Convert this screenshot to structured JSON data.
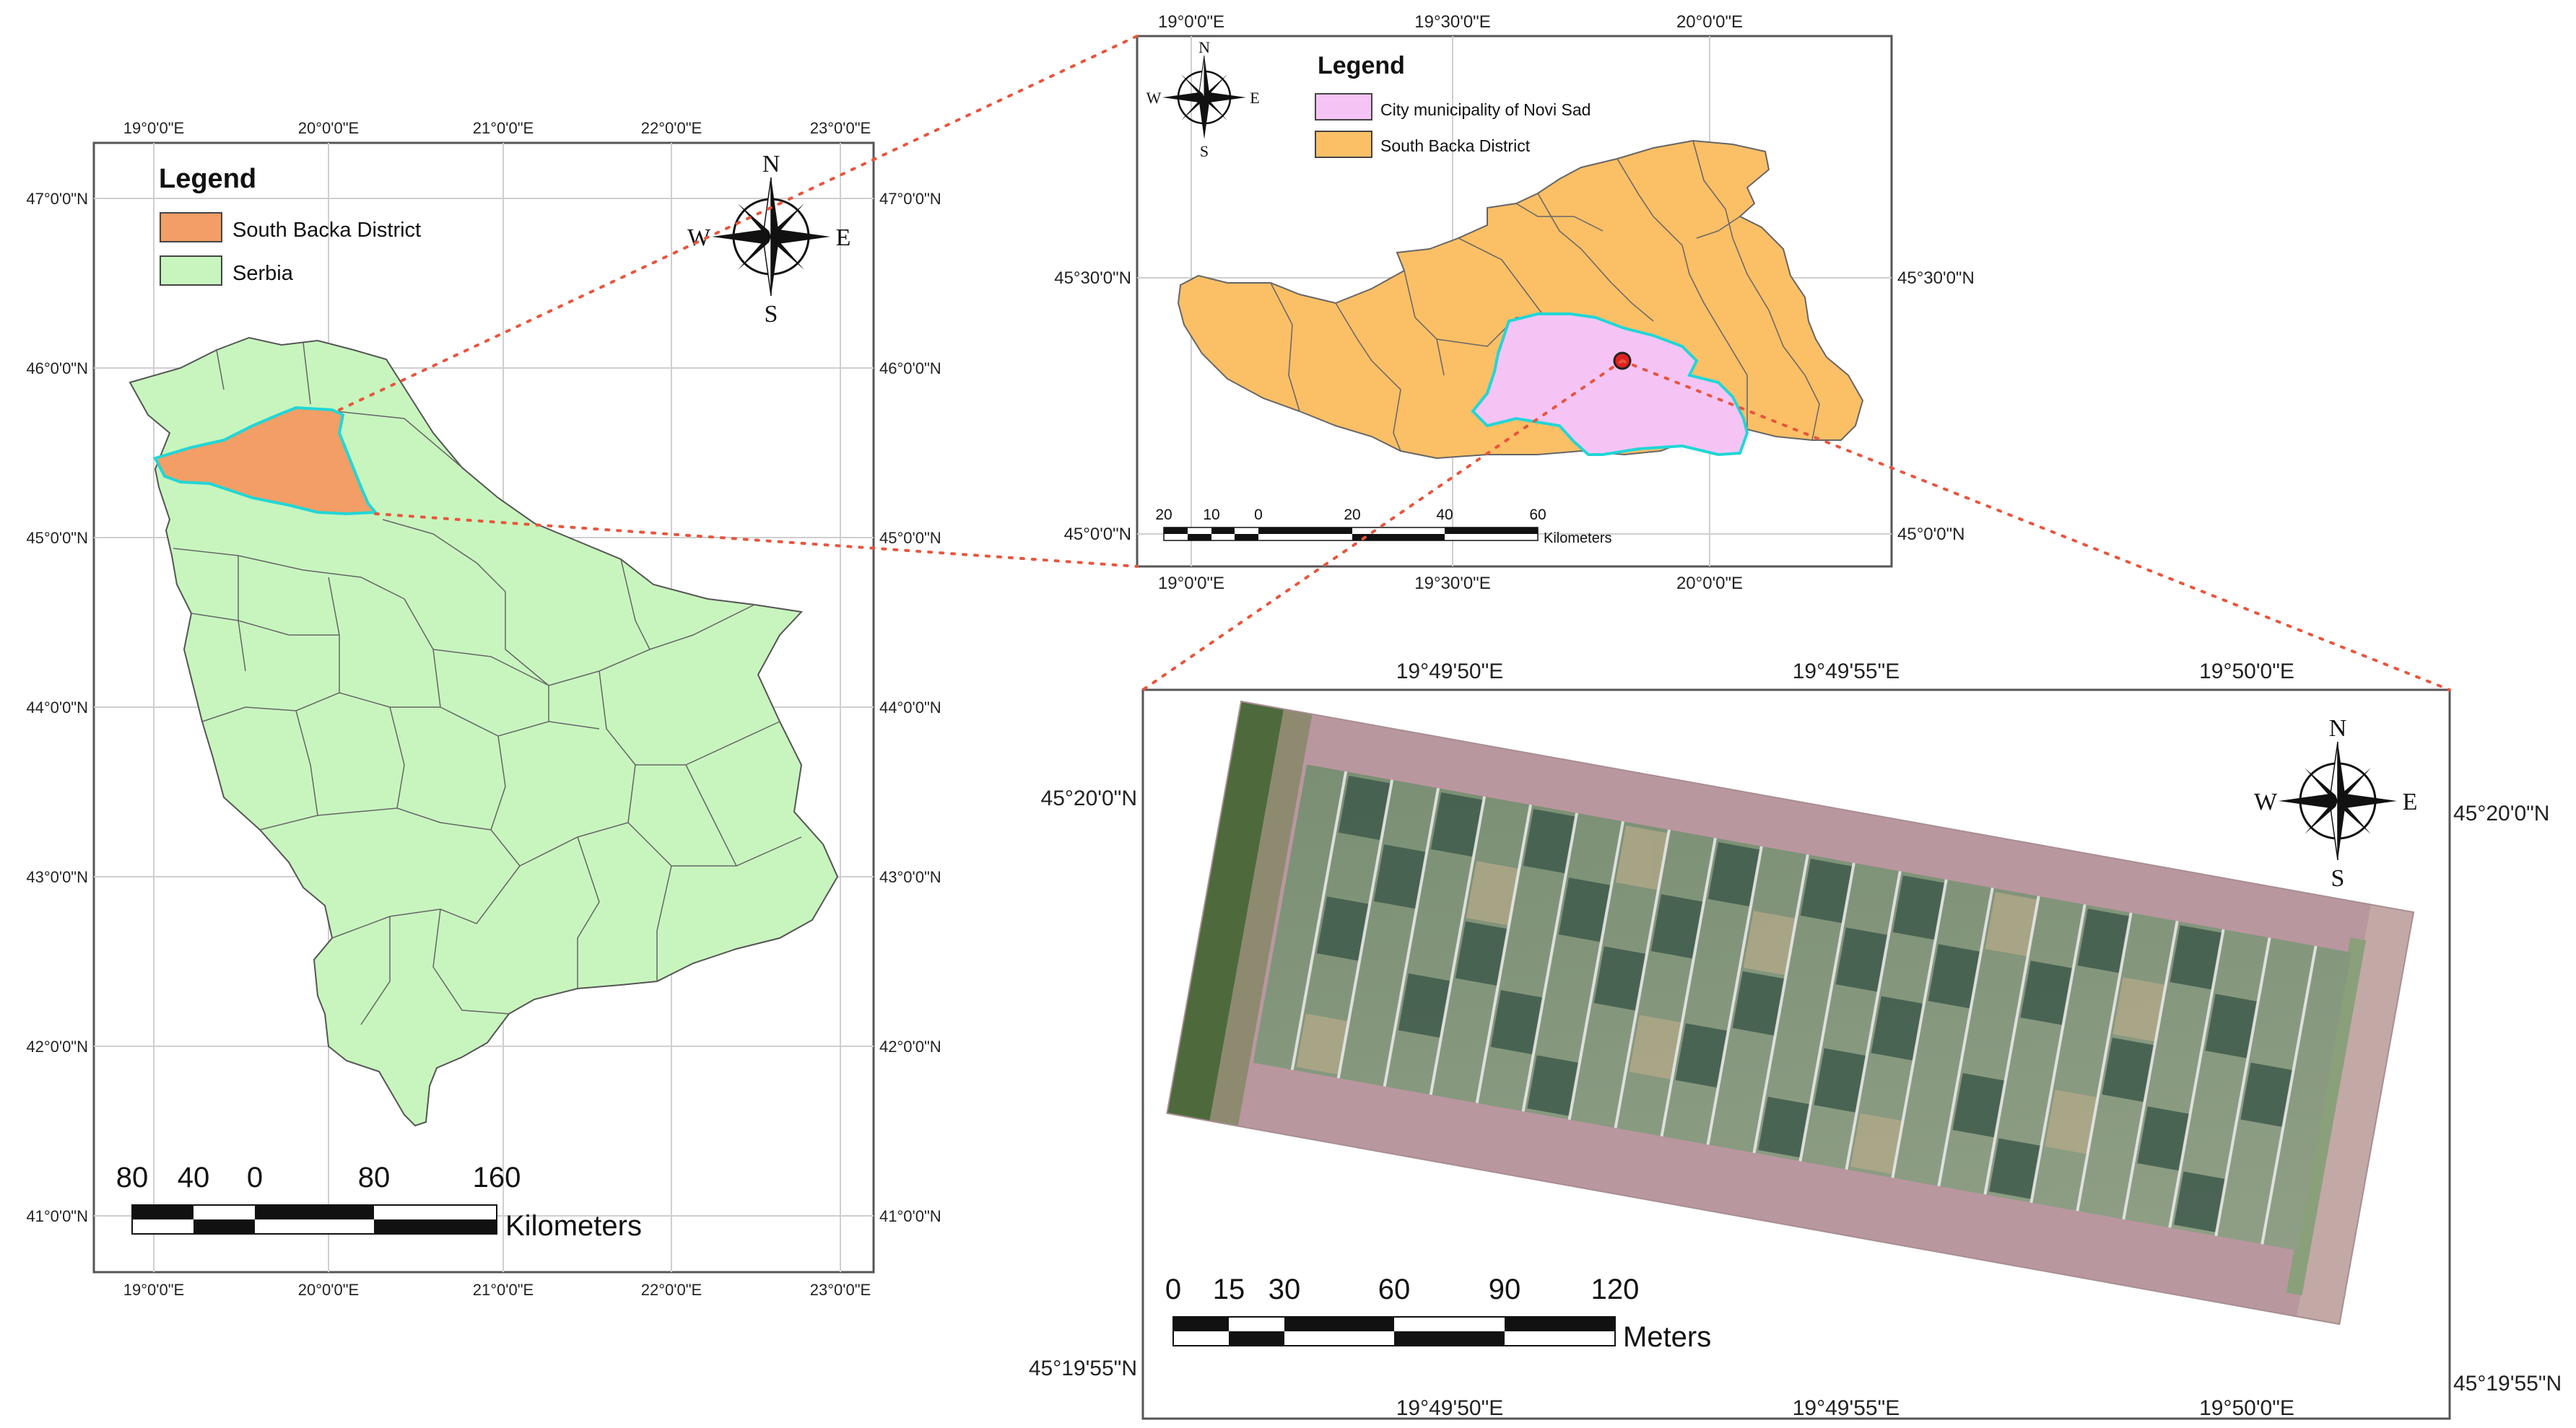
{
  "serbia_map": {
    "top_labels": [
      "19°0'0\"E",
      "20°0'0\"E",
      "21°0'0\"E",
      "22°0'0\"E",
      "23°0'0\"E"
    ],
    "bottom_labels": [
      "19°0'0\"E",
      "20°0'0\"E",
      "21°0'0\"E",
      "22°0'0\"E",
      "23°0'0\"E"
    ],
    "left_labels": [
      "47°0'0\"N",
      "46°0'0\"N",
      "45°0'0\"N",
      "44°0'0\"N",
      "43°0'0\"N",
      "42°0'0\"N",
      "41°0'0\"N"
    ],
    "right_labels": [
      "47°0'0\"N",
      "46°0'0\"N",
      "45°0'0\"N",
      "44°0'0\"N",
      "43°0'0\"N",
      "42°0'0\"N",
      "41°0'0\"N"
    ],
    "legend": {
      "title": "Legend",
      "items": [
        {
          "label": "South Backa District",
          "color": "#f29e66"
        },
        {
          "label": "Serbia",
          "color": "#c8f5be"
        }
      ]
    },
    "compass": {
      "n": "N",
      "s": "S",
      "e": "E",
      "w": "W"
    },
    "scale": {
      "ticks": [
        "80",
        "40",
        "0",
        "80",
        "160"
      ],
      "unit": "Kilometers"
    }
  },
  "district_map": {
    "top_labels": [
      "19°0'0\"E",
      "19°30'0\"E",
      "20°0'0\"E"
    ],
    "bottom_labels": [
      "19°0'0\"E",
      "19°30'0\"E",
      "20°0'0\"E"
    ],
    "left_labels": [
      "45°30'0\"N",
      "45°0'0\"N"
    ],
    "right_labels": [
      "45°30'0\"N",
      "45°0'0\"N"
    ],
    "legend": {
      "title": "Legend",
      "items": [
        {
          "label": "City municipality of Novi Sad",
          "color": "#f5c4f5"
        },
        {
          "label": "South Backa District",
          "color": "#fbbf66"
        }
      ]
    },
    "compass": {
      "n": "N",
      "s": "S",
      "e": "E",
      "w": "W"
    },
    "scale": {
      "ticks": [
        "20",
        "10",
        "0",
        "20",
        "40",
        "60"
      ],
      "unit": "Kilometers"
    }
  },
  "field_map": {
    "top_labels": [
      "19°49'50\"E",
      "19°49'55\"E",
      "19°50'0\"E"
    ],
    "bottom_labels": [
      "19°49'50\"E",
      "19°49'55\"E",
      "19°50'0\"E"
    ],
    "left_labels": [
      "45°20'0\"N",
      "45°19'55\"N"
    ],
    "right_labels": [
      "45°20'0\"N",
      "45°19'55\"N"
    ],
    "compass": {
      "n": "N",
      "s": "S",
      "e": "E",
      "w": "W"
    },
    "scale": {
      "ticks": [
        "0",
        "15",
        "30",
        "60",
        "90",
        "120"
      ],
      "unit": "Meters"
    }
  },
  "colors": {
    "south_backa": "#f29e66",
    "serbia": "#c8f5be",
    "novi_sad": "#f5c4f5",
    "district": "#fbbf66",
    "highlight_outline": "#22d6d6",
    "connector": "#e8553c",
    "site_marker": "#e02020"
  }
}
